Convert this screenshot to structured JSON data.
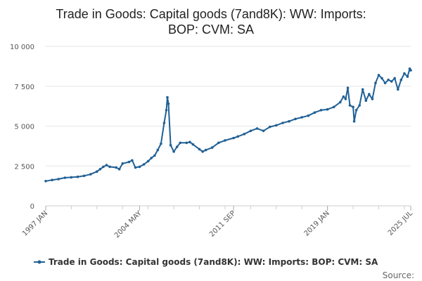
{
  "chart_data": {
    "type": "line",
    "title_line1": "Trade in Goods: Capital goods (7and8K): WW: Imports:",
    "title_line2": "BOP: CVM: SA",
    "y_ticks": [
      0,
      2500,
      5000,
      7500,
      10000
    ],
    "y_tick_labels": [
      "0",
      "2 500",
      "5 000",
      "7 500",
      "10 000"
    ],
    "ylim": [
      0,
      10000
    ],
    "x_range": [
      "1997 JAN",
      "2025 JUL"
    ],
    "x_tick_labels": [
      "1997 JAN",
      "2004 MAY",
      "2011 SEP",
      "2019 JAN",
      "2025 JUL"
    ],
    "x_tick_dates": [
      "1997-01",
      "2004-05",
      "2011-09",
      "2019-01",
      "2025-07"
    ],
    "grid": true,
    "legend_position": "bottom",
    "series": [
      {
        "name": "Trade in Goods: Capital goods (7and8K): WW: Imports: BOP: CVM: SA",
        "color": "#206095",
        "points": [
          [
            "1997-01",
            1550
          ],
          [
            "1997-07",
            1620
          ],
          [
            "1998-01",
            1680
          ],
          [
            "1998-07",
            1760
          ],
          [
            "1999-01",
            1790
          ],
          [
            "1999-07",
            1820
          ],
          [
            "2000-01",
            1880
          ],
          [
            "2000-07",
            1980
          ],
          [
            "2001-01",
            2150
          ],
          [
            "2001-04",
            2300
          ],
          [
            "2001-07",
            2450
          ],
          [
            "2001-10",
            2550
          ],
          [
            "2002-01",
            2450
          ],
          [
            "2002-07",
            2400
          ],
          [
            "2002-10",
            2300
          ],
          [
            "2003-01",
            2650
          ],
          [
            "2003-07",
            2750
          ],
          [
            "2003-10",
            2850
          ],
          [
            "2004-01",
            2400
          ],
          [
            "2004-05",
            2450
          ],
          [
            "2004-09",
            2600
          ],
          [
            "2005-01",
            2800
          ],
          [
            "2005-04",
            3000
          ],
          [
            "2005-07",
            3150
          ],
          [
            "2005-10",
            3500
          ],
          [
            "2006-01",
            3900
          ],
          [
            "2006-04",
            5200
          ],
          [
            "2006-06",
            6000
          ],
          [
            "2006-07",
            6800
          ],
          [
            "2006-08",
            6400
          ],
          [
            "2006-10",
            3800
          ],
          [
            "2007-01",
            3400
          ],
          [
            "2007-04",
            3700
          ],
          [
            "2007-07",
            3950
          ],
          [
            "2008-01",
            3950
          ],
          [
            "2008-04",
            4000
          ],
          [
            "2008-07",
            3850
          ],
          [
            "2009-01",
            3550
          ],
          [
            "2009-04",
            3400
          ],
          [
            "2009-07",
            3500
          ],
          [
            "2010-01",
            3650
          ],
          [
            "2010-07",
            3950
          ],
          [
            "2011-01",
            4100
          ],
          [
            "2011-09",
            4250
          ],
          [
            "2012-01",
            4350
          ],
          [
            "2012-07",
            4500
          ],
          [
            "2013-01",
            4700
          ],
          [
            "2013-07",
            4850
          ],
          [
            "2014-01",
            4700
          ],
          [
            "2014-07",
            4950
          ],
          [
            "2015-01",
            5050
          ],
          [
            "2015-07",
            5200
          ],
          [
            "2016-01",
            5300
          ],
          [
            "2016-07",
            5450
          ],
          [
            "2017-01",
            5550
          ],
          [
            "2017-07",
            5650
          ],
          [
            "2018-01",
            5850
          ],
          [
            "2018-07",
            6000
          ],
          [
            "2019-01",
            6050
          ],
          [
            "2019-07",
            6200
          ],
          [
            "2020-01",
            6500
          ],
          [
            "2020-04",
            6850
          ],
          [
            "2020-06",
            6700
          ],
          [
            "2020-08",
            7400
          ],
          [
            "2020-10",
            6300
          ],
          [
            "2021-01",
            6200
          ],
          [
            "2021-02",
            5300
          ],
          [
            "2021-04",
            6000
          ],
          [
            "2021-07",
            6300
          ],
          [
            "2021-10",
            7300
          ],
          [
            "2022-01",
            6600
          ],
          [
            "2022-04",
            7000
          ],
          [
            "2022-07",
            6700
          ],
          [
            "2022-10",
            7700
          ],
          [
            "2023-01",
            8200
          ],
          [
            "2023-04",
            8000
          ],
          [
            "2023-07",
            7700
          ],
          [
            "2023-10",
            7900
          ],
          [
            "2024-01",
            7800
          ],
          [
            "2024-04",
            8000
          ],
          [
            "2024-07",
            7300
          ],
          [
            "2024-10",
            7900
          ],
          [
            "2025-01",
            8300
          ],
          [
            "2025-04",
            8100
          ],
          [
            "2025-06",
            8600
          ],
          [
            "2025-07",
            8500
          ]
        ]
      }
    ]
  },
  "footer": {
    "source_label": "Source:"
  }
}
